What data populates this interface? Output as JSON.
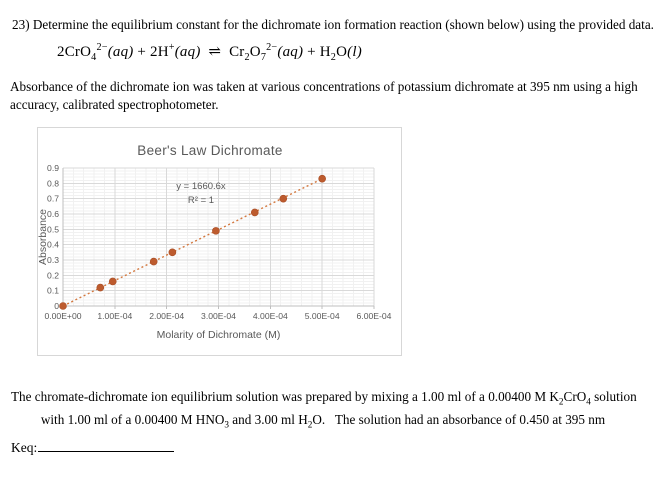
{
  "question": {
    "text": "23) Determine the equilibrium constant for the dichromate ion formation reaction (shown below) using the provided data."
  },
  "equation_segments": [
    {
      "text": "2CrO"
    },
    {
      "text": "4",
      "sub": true
    },
    {
      "text": "2−",
      "sup": true
    },
    {
      "text": "(aq)",
      "italic": true
    },
    {
      "text": " + 2H"
    },
    {
      "text": "+",
      "sup": true
    },
    {
      "text": "(aq)",
      "italic": true
    },
    {
      "text": "  ⇌  Cr"
    },
    {
      "text": "2",
      "sub": true
    },
    {
      "text": "O"
    },
    {
      "text": "7",
      "sub": true
    },
    {
      "text": "2−",
      "sup": true
    },
    {
      "text": "(aq)",
      "italic": true
    },
    {
      "text": " + H"
    },
    {
      "text": "2",
      "sub": true
    },
    {
      "text": "O"
    },
    {
      "text": "(l)",
      "italic": true
    }
  ],
  "intro": {
    "line1": "Absorbance of the dichromate ion was taken at various concentrations of potassium dichromate at 395 nm using a high",
    "line2": "accuracy, calibrated spectrophotometer."
  },
  "chart_data": {
    "type": "scatter",
    "title": "Beer's Law Dichromate",
    "xlabel": "Molarity of Dichromate (M)",
    "ylabel": "Absorbance",
    "x": [
      0,
      7.2e-05,
      9.6e-05,
      0.000175,
      0.000211,
      0.000295,
      0.00037,
      0.000425,
      0.0005
    ],
    "y": [
      0,
      0.12,
      0.16,
      0.29,
      0.35,
      0.49,
      0.61,
      0.7,
      0.83
    ],
    "trendline": {
      "equation": "y = 1660.6x",
      "r_squared_label": "R² = 1",
      "slope": 1660.6
    },
    "xlim": [
      0,
      0.0006
    ],
    "ylim": [
      0,
      0.9
    ],
    "x_tick_labels": [
      "0.00E+00",
      "1.00E-04",
      "2.00E-04",
      "3.00E-04",
      "4.00E-04",
      "5.00E-04",
      "6.00E-04"
    ],
    "y_tick_labels": [
      "0",
      "0.1",
      "0.2",
      "0.3",
      "0.4",
      "0.5",
      "0.6",
      "0.7",
      "0.8",
      "0.9"
    ],
    "x_minor_unit": 2e-05,
    "y_minor_unit": 0.02,
    "grid": "major+minor",
    "legend": "none",
    "marker_color": "#bd5b2e",
    "marker_edge_color": "#a84e26",
    "line_color": "#d3783f",
    "line_style": "dotted",
    "gridline_major_color": "#d9d9d9",
    "gridline_minor_color": "#f1f1f1",
    "axis_line_color": "#bfbfbf",
    "text_color": "#595959"
  },
  "closing": {
    "line1_segments": [
      {
        "text": "The chromate-dichromate ion equilibrium solution was prepared by mixing a 1.00 ml of a 0.00400 M K"
      },
      {
        "text": "2",
        "sub": true
      },
      {
        "text": "CrO"
      },
      {
        "text": "4",
        "sub": true
      },
      {
        "text": " solution"
      }
    ],
    "line2_segments": [
      {
        "text": "with 1.00 ml of a 0.00400 M HNO"
      },
      {
        "text": "3",
        "sub": true
      },
      {
        "text": " and 3.00 ml H"
      },
      {
        "text": "2",
        "sub": true
      },
      {
        "text": "O.   The solution had an absorbance of 0.450 at 395 nm"
      }
    ]
  },
  "answer": {
    "label": "Keq:",
    "value": ""
  }
}
